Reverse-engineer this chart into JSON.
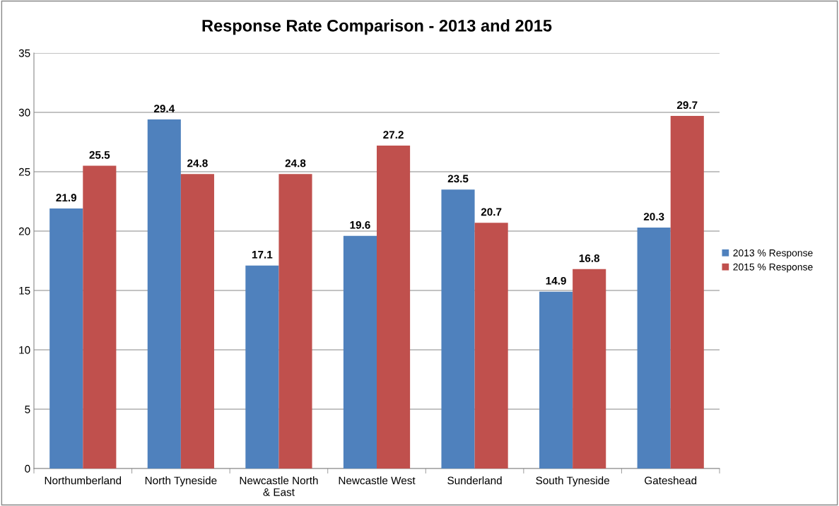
{
  "chart_data": {
    "type": "bar",
    "title": "Response Rate Comparison - 2013 and 2015",
    "categories": [
      "Northumberland",
      "North Tyneside",
      "Newcastle North\n& East",
      "Newcastle West",
      "Sunderland",
      "South Tyneside",
      "Gateshead"
    ],
    "series": [
      {
        "name": "2013 % Response",
        "color": "#4f81bd",
        "values": [
          21.9,
          29.4,
          17.1,
          19.6,
          23.5,
          14.9,
          20.3
        ]
      },
      {
        "name": "2015 % Response",
        "color": "#c0504d",
        "values": [
          25.5,
          24.8,
          24.8,
          27.2,
          20.7,
          16.8,
          29.7
        ]
      }
    ],
    "ylim": [
      0,
      35
    ],
    "yticks": [
      0,
      5,
      10,
      15,
      20,
      25,
      30,
      35
    ],
    "grid": "y",
    "legend": "right",
    "data_labels": true
  }
}
